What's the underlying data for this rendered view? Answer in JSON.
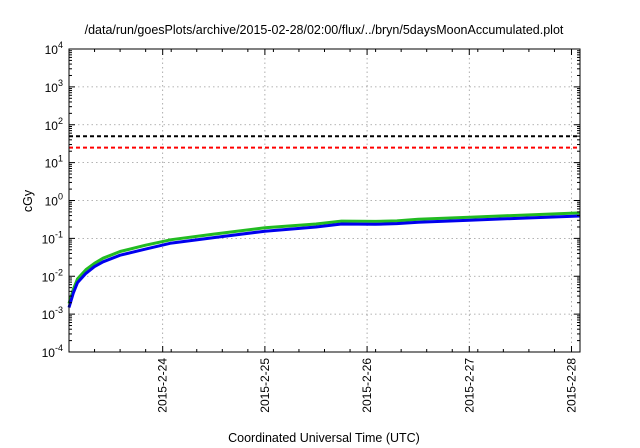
{
  "chart_data": {
    "type": "line",
    "title": "/data/run/goesPlots/archive/2015-02-28/02:00/flux/../bryn/5daysMoonAccumulated.plot",
    "xlabel": "Coordinated Universal Time (UTC)",
    "ylabel": "cGy",
    "xlim": [
      "2015-02-23T02:00",
      "2015-02-28T02:00"
    ],
    "ylim": [
      0.0001,
      10000
    ],
    "yscale": "log",
    "grid": true,
    "x_ticks": [
      "2015-2-24",
      "2015-2-25",
      "2015-2-26",
      "2015-2-27",
      "2015-2-28"
    ],
    "y_ticks": [
      {
        "value": 0.0001,
        "base": "10",
        "exp": "-4"
      },
      {
        "value": 0.001,
        "base": "10",
        "exp": "-3"
      },
      {
        "value": 0.01,
        "base": "10",
        "exp": "-2"
      },
      {
        "value": 0.1,
        "base": "10",
        "exp": "-1"
      },
      {
        "value": 1,
        "base": "10",
        "exp": "0"
      },
      {
        "value": 10,
        "base": "10",
        "exp": "1"
      },
      {
        "value": 100,
        "base": "10",
        "exp": "2"
      },
      {
        "value": 1000,
        "base": "10",
        "exp": "3"
      },
      {
        "value": 10000,
        "base": "10",
        "exp": "4"
      }
    ],
    "series": [
      {
        "color": "#000000",
        "dash": true,
        "x": [
          "2015-02-23T02:00",
          "2015-02-28T02:00"
        ],
        "values": [
          50,
          50
        ]
      },
      {
        "color": "#ff0000",
        "dash": true,
        "x": [
          "2015-02-23T02:00",
          "2015-02-28T02:00"
        ],
        "values": [
          25,
          25
        ]
      },
      {
        "color": "#22bb22",
        "dash": false,
        "x": [
          "2015-02-23T02:00",
          "2015-02-23T03:00",
          "2015-02-23T04:00",
          "2015-02-23T06:00",
          "2015-02-23T08:00",
          "2015-02-23T10:00",
          "2015-02-23T14:00",
          "2015-02-23T20:00",
          "2015-02-24T02:00",
          "2015-02-24T12:00",
          "2015-02-25T00:00",
          "2015-02-25T12:00",
          "2015-02-25T18:00",
          "2015-02-26T02:00",
          "2015-02-26T07:00",
          "2015-02-26T12:00",
          "2015-02-27T00:00",
          "2015-02-27T12:00",
          "2015-02-28T02:00"
        ],
        "values": [
          0.0019,
          0.0045,
          0.0085,
          0.015,
          0.022,
          0.03,
          0.045,
          0.066,
          0.092,
          0.13,
          0.19,
          0.24,
          0.285,
          0.28,
          0.29,
          0.32,
          0.36,
          0.41,
          0.47
        ]
      },
      {
        "color": "#0000ee",
        "dash": false,
        "x": [
          "2015-02-23T02:00",
          "2015-02-23T03:00",
          "2015-02-23T04:00",
          "2015-02-23T06:00",
          "2015-02-23T08:00",
          "2015-02-23T10:00",
          "2015-02-23T14:00",
          "2015-02-23T20:00",
          "2015-02-24T02:00",
          "2015-02-24T12:00",
          "2015-02-25T00:00",
          "2015-02-25T12:00",
          "2015-02-25T18:00",
          "2015-02-26T02:00",
          "2015-02-26T07:00",
          "2015-02-26T12:00",
          "2015-02-27T00:00",
          "2015-02-27T12:00",
          "2015-02-28T02:00"
        ],
        "values": [
          0.0015,
          0.0036,
          0.0068,
          0.012,
          0.018,
          0.024,
          0.036,
          0.052,
          0.075,
          0.105,
          0.155,
          0.2,
          0.24,
          0.235,
          0.245,
          0.265,
          0.3,
          0.34,
          0.39
        ]
      }
    ]
  }
}
